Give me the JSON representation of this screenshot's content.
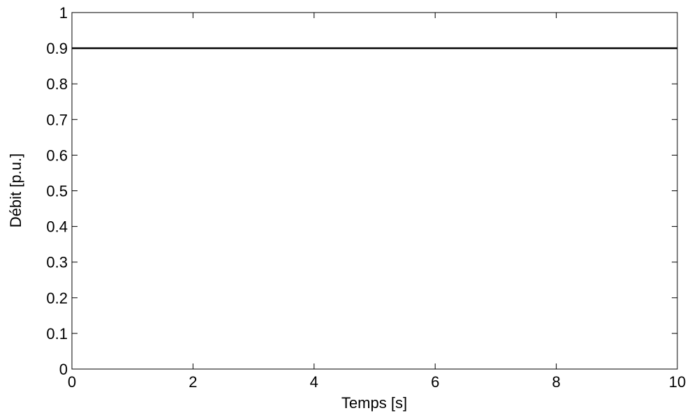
{
  "chart_data": {
    "type": "line",
    "title": "",
    "xlabel": "Temps [s]",
    "ylabel": "Débit [p.u.]",
    "xlim": [
      0,
      10
    ],
    "ylim": [
      0,
      1
    ],
    "xticks": [
      0,
      2,
      4,
      6,
      8,
      10
    ],
    "yticks": [
      0,
      0.1,
      0.2,
      0.3,
      0.4,
      0.5,
      0.6,
      0.7,
      0.8,
      0.9,
      1
    ],
    "xtick_labels": [
      "0",
      "2",
      "4",
      "6",
      "8",
      "10"
    ],
    "ytick_labels": [
      "0",
      "0.1",
      "0.2",
      "0.3",
      "0.4",
      "0.5",
      "0.6",
      "0.7",
      "0.8",
      "0.9",
      "1"
    ],
    "grid": false,
    "legend": "none",
    "series": [
      {
        "x": [
          0,
          10
        ],
        "y": [
          0.9,
          0.9
        ],
        "color": "#000000"
      }
    ]
  }
}
